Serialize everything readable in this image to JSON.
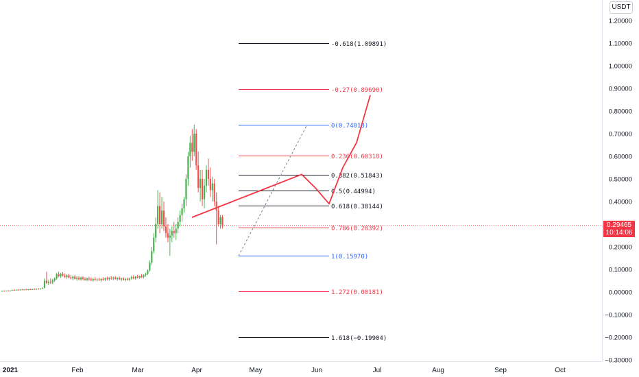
{
  "chart_data": {
    "type": "candlestick",
    "currency": "USDT",
    "x_labels": [
      "2021",
      "Feb",
      "Mar",
      "Apr",
      "May",
      "Jun",
      "Jul",
      "Aug",
      "Sep",
      "Oct"
    ],
    "y_ticks": [
      "1.20000",
      "1.10000",
      "1.00000",
      "0.90000",
      "0.80000",
      "0.70000",
      "0.60000",
      "0.50000",
      "0.40000",
      "0.30000",
      "0.20000",
      "0.10000",
      "0.00000",
      "−0.10000",
      "−0.20000",
      "−0.30000"
    ],
    "ylim": [
      -0.3,
      1.23
    ],
    "last_price": "0.29465",
    "countdown": "10:14:06",
    "colors": {
      "up": "#26a69a",
      "up_fill": "#4caf50",
      "down": "#ef5350",
      "accent": "#f23645",
      "fib_red": "#f23645",
      "fib_blue": "#2962ff",
      "fib_black": "#131722"
    },
    "fib_levels": [
      {
        "label": "-0.618(1.09891)",
        "value": 1.09891,
        "color": "black"
      },
      {
        "label": "-0.27(0.89690)",
        "value": 0.8969,
        "color": "red"
      },
      {
        "label": "0(0.74018)",
        "value": 0.74018,
        "color": "blue"
      },
      {
        "label": "0.236(0.60318)",
        "value": 0.60318,
        "color": "red"
      },
      {
        "label": "0.382(0.51843)",
        "value": 0.51843,
        "color": "black"
      },
      {
        "label": "0.5(0.44994)",
        "value": 0.44994,
        "color": "black"
      },
      {
        "label": "0.618(0.38144)",
        "value": 0.38144,
        "color": "black"
      },
      {
        "label": "0.786(0.28392)",
        "value": 0.28392,
        "color": "red"
      },
      {
        "label": "1(0.15970)",
        "value": 0.1597,
        "color": "blue"
      },
      {
        "label": "1.272(0.00181)",
        "value": 0.00181,
        "color": "red"
      },
      {
        "label": "1.618(−0.19904)",
        "value": -0.19904,
        "color": "black"
      }
    ],
    "candles": [
      {
        "o": 0.004,
        "h": 0.006,
        "l": 0.002,
        "c": 0.005
      },
      {
        "o": 0.005,
        "h": 0.007,
        "l": 0.003,
        "c": 0.004
      },
      {
        "o": 0.004,
        "h": 0.006,
        "l": 0.003,
        "c": 0.006
      },
      {
        "o": 0.006,
        "h": 0.008,
        "l": 0.004,
        "c": 0.005
      },
      {
        "o": 0.005,
        "h": 0.007,
        "l": 0.004,
        "c": 0.006
      },
      {
        "o": 0.006,
        "h": 0.01,
        "l": 0.005,
        "c": 0.009
      },
      {
        "o": 0.009,
        "h": 0.012,
        "l": 0.007,
        "c": 0.008
      },
      {
        "o": 0.008,
        "h": 0.011,
        "l": 0.006,
        "c": 0.01
      },
      {
        "o": 0.01,
        "h": 0.013,
        "l": 0.008,
        "c": 0.009
      },
      {
        "o": 0.009,
        "h": 0.012,
        "l": 0.007,
        "c": 0.011
      },
      {
        "o": 0.011,
        "h": 0.013,
        "l": 0.009,
        "c": 0.01
      },
      {
        "o": 0.01,
        "h": 0.012,
        "l": 0.008,
        "c": 0.011
      },
      {
        "o": 0.011,
        "h": 0.014,
        "l": 0.009,
        "c": 0.01
      },
      {
        "o": 0.01,
        "h": 0.013,
        "l": 0.008,
        "c": 0.012
      },
      {
        "o": 0.012,
        "h": 0.015,
        "l": 0.01,
        "c": 0.011
      },
      {
        "o": 0.011,
        "h": 0.014,
        "l": 0.009,
        "c": 0.013
      },
      {
        "o": 0.013,
        "h": 0.016,
        "l": 0.011,
        "c": 0.012
      },
      {
        "o": 0.012,
        "h": 0.015,
        "l": 0.01,
        "c": 0.014
      },
      {
        "o": 0.014,
        "h": 0.017,
        "l": 0.012,
        "c": 0.013
      },
      {
        "o": 0.013,
        "h": 0.016,
        "l": 0.011,
        "c": 0.015
      },
      {
        "o": 0.015,
        "h": 0.02,
        "l": 0.013,
        "c": 0.018
      },
      {
        "o": 0.018,
        "h": 0.06,
        "l": 0.016,
        "c": 0.05
      },
      {
        "o": 0.05,
        "h": 0.09,
        "l": 0.035,
        "c": 0.04
      },
      {
        "o": 0.04,
        "h": 0.055,
        "l": 0.03,
        "c": 0.045
      },
      {
        "o": 0.045,
        "h": 0.06,
        "l": 0.035,
        "c": 0.042
      },
      {
        "o": 0.042,
        "h": 0.058,
        "l": 0.035,
        "c": 0.052
      },
      {
        "o": 0.052,
        "h": 0.065,
        "l": 0.045,
        "c": 0.06
      },
      {
        "o": 0.06,
        "h": 0.085,
        "l": 0.055,
        "c": 0.078
      },
      {
        "o": 0.078,
        "h": 0.09,
        "l": 0.065,
        "c": 0.07
      },
      {
        "o": 0.07,
        "h": 0.085,
        "l": 0.062,
        "c": 0.08
      },
      {
        "o": 0.08,
        "h": 0.088,
        "l": 0.068,
        "c": 0.072
      },
      {
        "o": 0.072,
        "h": 0.082,
        "l": 0.062,
        "c": 0.066
      },
      {
        "o": 0.066,
        "h": 0.078,
        "l": 0.058,
        "c": 0.074
      },
      {
        "o": 0.074,
        "h": 0.08,
        "l": 0.06,
        "c": 0.064
      },
      {
        "o": 0.064,
        "h": 0.075,
        "l": 0.056,
        "c": 0.06
      },
      {
        "o": 0.06,
        "h": 0.072,
        "l": 0.052,
        "c": 0.068
      },
      {
        "o": 0.068,
        "h": 0.076,
        "l": 0.056,
        "c": 0.058
      },
      {
        "o": 0.058,
        "h": 0.07,
        "l": 0.05,
        "c": 0.062
      },
      {
        "o": 0.062,
        "h": 0.07,
        "l": 0.052,
        "c": 0.056
      },
      {
        "o": 0.056,
        "h": 0.068,
        "l": 0.05,
        "c": 0.064
      },
      {
        "o": 0.064,
        "h": 0.07,
        "l": 0.052,
        "c": 0.058
      },
      {
        "o": 0.058,
        "h": 0.066,
        "l": 0.05,
        "c": 0.054
      },
      {
        "o": 0.054,
        "h": 0.064,
        "l": 0.048,
        "c": 0.06
      },
      {
        "o": 0.06,
        "h": 0.068,
        "l": 0.05,
        "c": 0.056
      },
      {
        "o": 0.056,
        "h": 0.064,
        "l": 0.048,
        "c": 0.052
      },
      {
        "o": 0.052,
        "h": 0.062,
        "l": 0.046,
        "c": 0.058
      },
      {
        "o": 0.058,
        "h": 0.066,
        "l": 0.05,
        "c": 0.054
      },
      {
        "o": 0.054,
        "h": 0.062,
        "l": 0.047,
        "c": 0.056
      },
      {
        "o": 0.056,
        "h": 0.063,
        "l": 0.049,
        "c": 0.052
      },
      {
        "o": 0.052,
        "h": 0.061,
        "l": 0.046,
        "c": 0.058
      },
      {
        "o": 0.058,
        "h": 0.065,
        "l": 0.05,
        "c": 0.055
      },
      {
        "o": 0.055,
        "h": 0.064,
        "l": 0.048,
        "c": 0.06
      },
      {
        "o": 0.06,
        "h": 0.068,
        "l": 0.052,
        "c": 0.058
      },
      {
        "o": 0.058,
        "h": 0.066,
        "l": 0.05,
        "c": 0.062
      },
      {
        "o": 0.062,
        "h": 0.07,
        "l": 0.054,
        "c": 0.06
      },
      {
        "o": 0.06,
        "h": 0.068,
        "l": 0.052,
        "c": 0.064
      },
      {
        "o": 0.064,
        "h": 0.07,
        "l": 0.055,
        "c": 0.058
      },
      {
        "o": 0.058,
        "h": 0.066,
        "l": 0.05,
        "c": 0.062
      },
      {
        "o": 0.062,
        "h": 0.069,
        "l": 0.054,
        "c": 0.056
      },
      {
        "o": 0.056,
        "h": 0.064,
        "l": 0.048,
        "c": 0.06
      },
      {
        "o": 0.06,
        "h": 0.066,
        "l": 0.05,
        "c": 0.054
      },
      {
        "o": 0.054,
        "h": 0.062,
        "l": 0.047,
        "c": 0.058
      },
      {
        "o": 0.058,
        "h": 0.064,
        "l": 0.05,
        "c": 0.055
      },
      {
        "o": 0.055,
        "h": 0.063,
        "l": 0.048,
        "c": 0.06
      },
      {
        "o": 0.06,
        "h": 0.072,
        "l": 0.055,
        "c": 0.066
      },
      {
        "o": 0.066,
        "h": 0.074,
        "l": 0.056,
        "c": 0.06
      },
      {
        "o": 0.06,
        "h": 0.07,
        "l": 0.054,
        "c": 0.068
      },
      {
        "o": 0.068,
        "h": 0.076,
        "l": 0.06,
        "c": 0.064
      },
      {
        "o": 0.064,
        "h": 0.072,
        "l": 0.058,
        "c": 0.07
      },
      {
        "o": 0.07,
        "h": 0.08,
        "l": 0.062,
        "c": 0.066
      },
      {
        "o": 0.066,
        "h": 0.078,
        "l": 0.06,
        "c": 0.075
      },
      {
        "o": 0.075,
        "h": 0.085,
        "l": 0.068,
        "c": 0.08
      },
      {
        "o": 0.08,
        "h": 0.1,
        "l": 0.075,
        "c": 0.095
      },
      {
        "o": 0.095,
        "h": 0.14,
        "l": 0.09,
        "c": 0.13
      },
      {
        "o": 0.13,
        "h": 0.2,
        "l": 0.12,
        "c": 0.18
      },
      {
        "o": 0.18,
        "h": 0.26,
        "l": 0.17,
        "c": 0.24
      },
      {
        "o": 0.24,
        "h": 0.33,
        "l": 0.22,
        "c": 0.3
      },
      {
        "o": 0.3,
        "h": 0.45,
        "l": 0.28,
        "c": 0.38
      },
      {
        "o": 0.38,
        "h": 0.44,
        "l": 0.26,
        "c": 0.3
      },
      {
        "o": 0.3,
        "h": 0.42,
        "l": 0.28,
        "c": 0.36
      },
      {
        "o": 0.36,
        "h": 0.4,
        "l": 0.27,
        "c": 0.29
      },
      {
        "o": 0.29,
        "h": 0.33,
        "l": 0.24,
        "c": 0.26
      },
      {
        "o": 0.26,
        "h": 0.3,
        "l": 0.22,
        "c": 0.24
      },
      {
        "o": 0.24,
        "h": 0.28,
        "l": 0.16,
        "c": 0.25
      },
      {
        "o": 0.25,
        "h": 0.29,
        "l": 0.22,
        "c": 0.27
      },
      {
        "o": 0.27,
        "h": 0.31,
        "l": 0.24,
        "c": 0.26
      },
      {
        "o": 0.26,
        "h": 0.3,
        "l": 0.23,
        "c": 0.28
      },
      {
        "o": 0.28,
        "h": 0.33,
        "l": 0.26,
        "c": 0.31
      },
      {
        "o": 0.31,
        "h": 0.36,
        "l": 0.29,
        "c": 0.34
      },
      {
        "o": 0.34,
        "h": 0.39,
        "l": 0.31,
        "c": 0.37
      },
      {
        "o": 0.37,
        "h": 0.42,
        "l": 0.35,
        "c": 0.41
      },
      {
        "o": 0.41,
        "h": 0.52,
        "l": 0.38,
        "c": 0.5
      },
      {
        "o": 0.5,
        "h": 0.62,
        "l": 0.47,
        "c": 0.6
      },
      {
        "o": 0.6,
        "h": 0.69,
        "l": 0.55,
        "c": 0.66
      },
      {
        "o": 0.66,
        "h": 0.72,
        "l": 0.58,
        "c": 0.62
      },
      {
        "o": 0.62,
        "h": 0.74,
        "l": 0.6,
        "c": 0.7
      },
      {
        "o": 0.7,
        "h": 0.72,
        "l": 0.54,
        "c": 0.56
      },
      {
        "o": 0.56,
        "h": 0.62,
        "l": 0.44,
        "c": 0.46
      },
      {
        "o": 0.46,
        "h": 0.54,
        "l": 0.4,
        "c": 0.5
      },
      {
        "o": 0.5,
        "h": 0.54,
        "l": 0.38,
        "c": 0.41
      },
      {
        "o": 0.41,
        "h": 0.5,
        "l": 0.37,
        "c": 0.47
      },
      {
        "o": 0.47,
        "h": 0.56,
        "l": 0.44,
        "c": 0.54
      },
      {
        "o": 0.54,
        "h": 0.59,
        "l": 0.47,
        "c": 0.5
      },
      {
        "o": 0.5,
        "h": 0.55,
        "l": 0.42,
        "c": 0.45
      },
      {
        "o": 0.45,
        "h": 0.51,
        "l": 0.4,
        "c": 0.48
      },
      {
        "o": 0.48,
        "h": 0.5,
        "l": 0.38,
        "c": 0.4
      },
      {
        "o": 0.4,
        "h": 0.44,
        "l": 0.21,
        "c": 0.36
      },
      {
        "o": 0.36,
        "h": 0.38,
        "l": 0.29,
        "c": 0.3
      },
      {
        "o": 0.3,
        "h": 0.34,
        "l": 0.28,
        "c": 0.33
      },
      {
        "o": 0.33,
        "h": 0.34,
        "l": 0.28,
        "c": 0.29
      }
    ],
    "projection_path": [
      [
        0.33,
        0.29
      ],
      [
        0.52,
        0.45
      ],
      [
        0.46,
        0.47
      ],
      [
        0.39,
        0.49
      ],
      [
        0.55,
        0.51
      ],
      [
        0.66,
        0.53
      ],
      [
        0.87,
        0.55
      ]
    ]
  }
}
